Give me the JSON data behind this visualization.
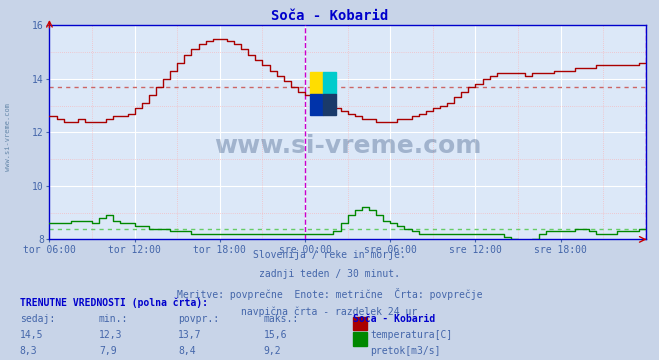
{
  "title": "Soča - Kobarid",
  "bg_color": "#c8d4e8",
  "plot_bg_color": "#dce8f8",
  "grid_color_major": "#ffffff",
  "vline_color": "#cc00cc",
  "x_labels": [
    "tor 06:00",
    "tor 12:00",
    "tor 18:00",
    "sre 00:00",
    "sre 06:00",
    "sre 12:00",
    "sre 18:00"
  ],
  "x_ticks": [
    0,
    12,
    24,
    36,
    48,
    60,
    72
  ],
  "ylim": [
    8,
    16
  ],
  "yticks": [
    8,
    10,
    12,
    14,
    16
  ],
  "temp_avg": 13.7,
  "flow_avg": 8.4,
  "temp_color": "#aa0000",
  "flow_color": "#008800",
  "avg_temp_color": "#cc6666",
  "avg_flow_color": "#66cc66",
  "watermark": "www.si-vreme.com",
  "subtitle1": "Slovenija / reke in morje.",
  "subtitle2": "zadnji teden / 30 minut.",
  "subtitle3": "Meritve: povprečne  Enote: metrične  Črta: povprečje",
  "subtitle4": "navpična črta - razdelek 24 ur",
  "label_current": "TRENUTNE VREDNOSTI (polna črta):",
  "col_sedaj": "sedaj:",
  "col_min": "min.:",
  "col_povpr": "povpr.:",
  "col_maks": "maks.:",
  "col_station": "Soča - Kobarid",
  "temp_sedaj": "14,5",
  "temp_min": "12,3",
  "temp_povpr": "13,7",
  "temp_maks": "15,6",
  "flow_sedaj": "8,3",
  "flow_min": "7,9",
  "flow_povpr": "8,4",
  "flow_maks": "9,2",
  "temp_label": "temperatura[C]",
  "flow_label": "pretok[m3/s]",
  "sidebar_text": "www.si-vreme.com",
  "sidebar_color": "#6688aa",
  "temp_profile": [
    12.6,
    12.5,
    12.4,
    12.4,
    12.5,
    12.4,
    12.4,
    12.4,
    12.5,
    12.6,
    12.6,
    12.7,
    12.9,
    13.1,
    13.4,
    13.7,
    14.0,
    14.3,
    14.6,
    14.9,
    15.1,
    15.3,
    15.4,
    15.5,
    15.5,
    15.4,
    15.3,
    15.1,
    14.9,
    14.7,
    14.5,
    14.3,
    14.1,
    13.9,
    13.7,
    13.5,
    13.4,
    13.3,
    13.2,
    13.0,
    12.9,
    12.8,
    12.7,
    12.6,
    12.5,
    12.5,
    12.4,
    12.4,
    12.4,
    12.5,
    12.5,
    12.6,
    12.7,
    12.8,
    12.9,
    13.0,
    13.1,
    13.3,
    13.5,
    13.7,
    13.8,
    14.0,
    14.1,
    14.2,
    14.2,
    14.2,
    14.2,
    14.1,
    14.2,
    14.2,
    14.2,
    14.3,
    14.3,
    14.3,
    14.4,
    14.4,
    14.4,
    14.5,
    14.5,
    14.5,
    14.5,
    14.5,
    14.5,
    14.6,
    14.6
  ],
  "flow_profile": [
    8.6,
    8.6,
    8.6,
    8.7,
    8.7,
    8.7,
    8.6,
    8.8,
    8.9,
    8.7,
    8.6,
    8.6,
    8.5,
    8.5,
    8.4,
    8.4,
    8.4,
    8.3,
    8.3,
    8.3,
    8.2,
    8.2,
    8.2,
    8.2,
    8.2,
    8.2,
    8.2,
    8.2,
    8.2,
    8.2,
    8.2,
    8.2,
    8.2,
    8.2,
    8.2,
    8.2,
    8.2,
    8.2,
    8.2,
    8.2,
    8.3,
    8.6,
    8.9,
    9.1,
    9.2,
    9.1,
    8.9,
    8.7,
    8.6,
    8.5,
    8.4,
    8.3,
    8.2,
    8.2,
    8.2,
    8.2,
    8.2,
    8.2,
    8.2,
    8.2,
    8.2,
    8.2,
    8.2,
    8.2,
    8.1,
    8.0,
    7.9,
    7.9,
    8.0,
    8.2,
    8.3,
    8.3,
    8.3,
    8.3,
    8.4,
    8.4,
    8.3,
    8.2,
    8.2,
    8.2,
    8.3,
    8.3,
    8.3,
    8.4,
    8.4
  ]
}
